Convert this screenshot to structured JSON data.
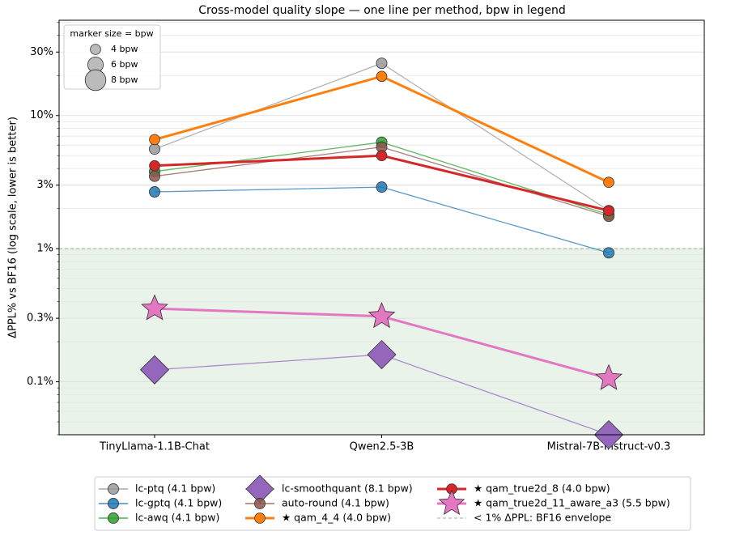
{
  "chart_data": {
    "type": "line",
    "title": "Cross-model quality slope — one line per method, bpw in legend",
    "y_label": "ΔPPL% vs BF16   (log scale, lower is better)",
    "y_scale": "log",
    "categories": [
      "TinyLlama-1.1B-Chat",
      "Qwen2.5-3B",
      "Mistral-7B-Instruct-v0.3"
    ],
    "ylim": [
      0.04,
      52
    ],
    "yticks": [
      {
        "value": 0.1,
        "label": "0.1%"
      },
      {
        "value": 0.3,
        "label": "0.3%"
      },
      {
        "value": 1,
        "label": "1%"
      },
      {
        "value": 3,
        "label": "3%"
      },
      {
        "value": 10,
        "label": "10%"
      },
      {
        "value": 30,
        "label": "30%"
      }
    ],
    "grid": true,
    "series": [
      {
        "name": "lc-ptq  (4.1 bpw)",
        "bpw": 4.1,
        "marker": "circle",
        "color": "#999999",
        "highlight": false,
        "values": [
          5.6,
          24.7,
          1.93
        ]
      },
      {
        "name": "lc-gptq  (4.1 bpw)",
        "bpw": 4.1,
        "marker": "circle",
        "color": "#1f77b4",
        "highlight": false,
        "values": [
          2.67,
          2.9,
          0.93
        ]
      },
      {
        "name": "lc-awq  (4.1 bpw)",
        "bpw": 4.1,
        "marker": "circle",
        "color": "#2ca02c",
        "highlight": false,
        "values": [
          3.8,
          6.3,
          1.8
        ]
      },
      {
        "name": "lc-smoothquant  (8.1 bpw)",
        "bpw": 8.1,
        "marker": "diamond",
        "color": "#9467bd",
        "highlight": false,
        "values": [
          0.123,
          0.16,
          0.04
        ]
      },
      {
        "name": "auto-round  (4.1 bpw)",
        "bpw": 4.1,
        "marker": "circle",
        "color": "#8c564b",
        "highlight": false,
        "values": [
          3.5,
          5.8,
          1.75
        ]
      },
      {
        "name": "★ qam_4_4  (4.0 bpw)",
        "bpw": 4.0,
        "marker": "circle",
        "color": "#ff7f0e",
        "highlight": true,
        "values": [
          6.6,
          19.7,
          3.15
        ]
      },
      {
        "name": "★ qam_true2d_8  (4.0 bpw)",
        "bpw": 4.0,
        "marker": "circle",
        "color": "#d62728",
        "highlight": true,
        "values": [
          4.2,
          5.0,
          1.93
        ]
      },
      {
        "name": "★ qam_true2d_11_aware_a3  (5.5 bpw)",
        "bpw": 5.5,
        "marker": "star",
        "color": "#e377c2",
        "highlight": true,
        "values": [
          0.355,
          0.31,
          0.106
        ]
      }
    ],
    "reference": {
      "value": 1,
      "label": "< 1% ΔPPL: BF16 envelope",
      "color": "#8fb08f"
    },
    "size_legend": {
      "title": "marker size = bpw",
      "entries": [
        {
          "value": 4,
          "label": "4 bpw"
        },
        {
          "value": 6,
          "label": "6 bpw"
        },
        {
          "value": 8,
          "label": "8 bpw"
        }
      ]
    }
  }
}
